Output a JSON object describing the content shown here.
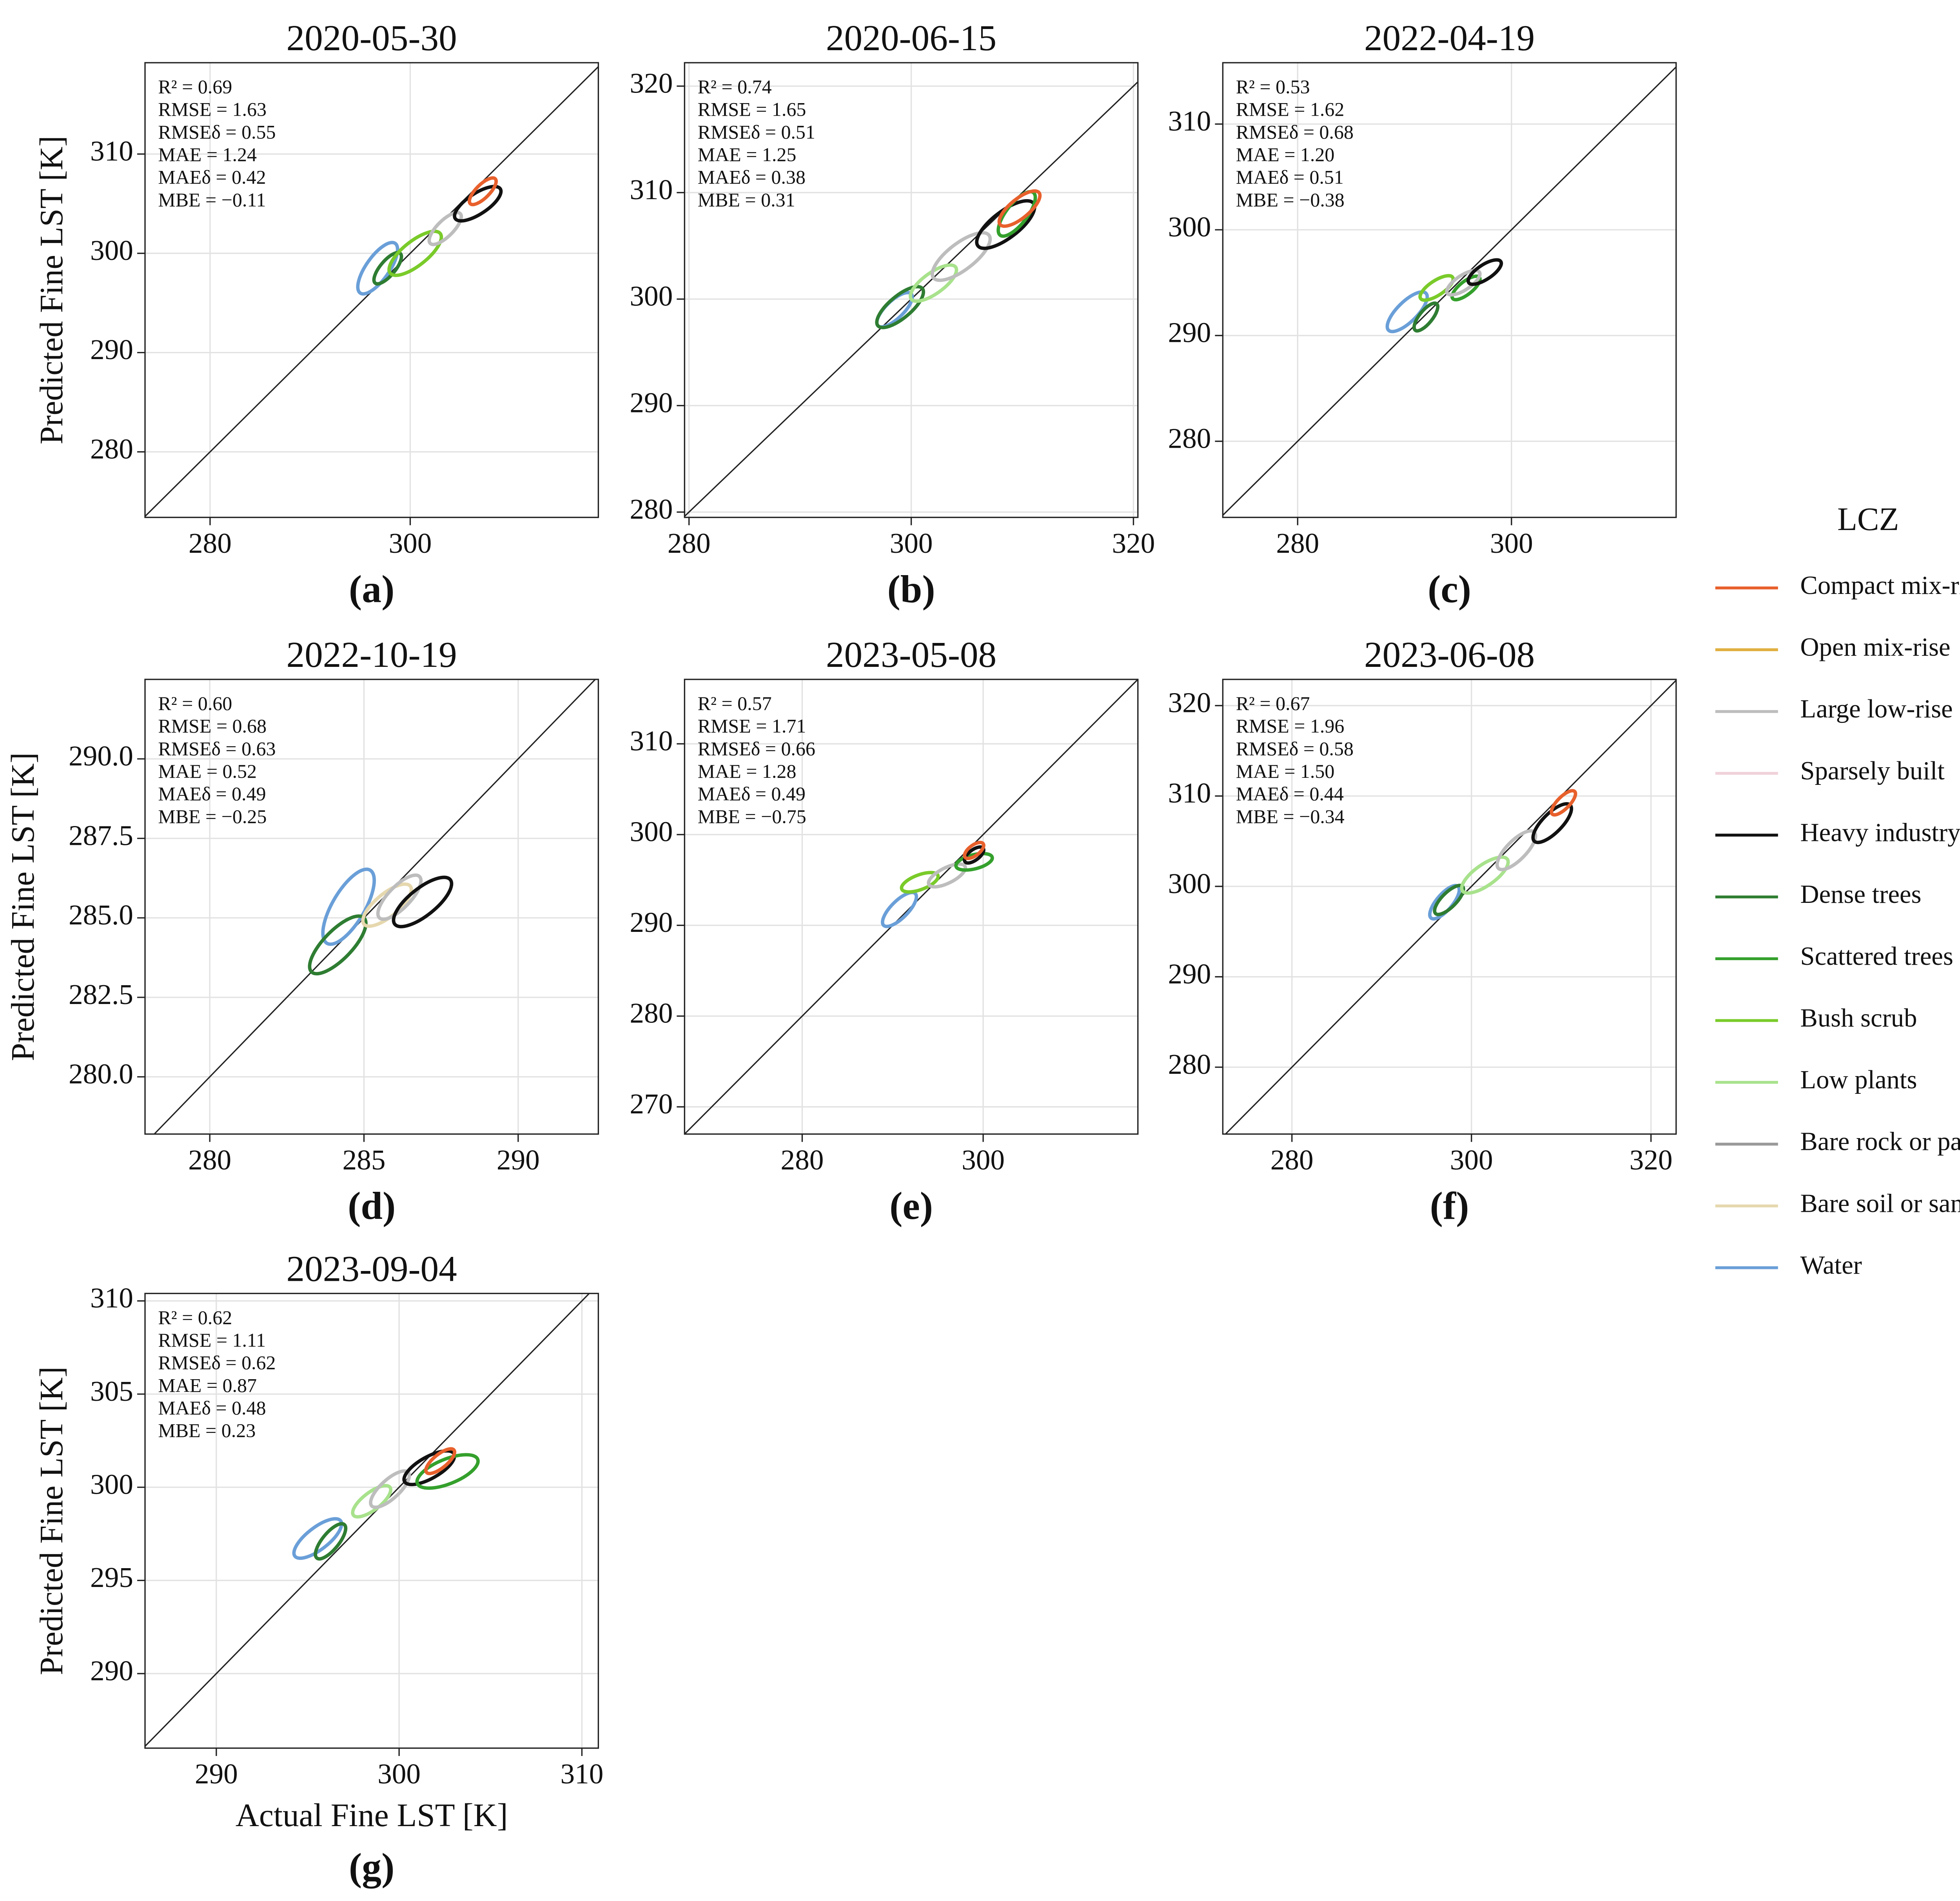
{
  "chart_data": [
    {
      "type": "contour",
      "title": "2020-05-30",
      "panel_label": "(a)",
      "ylabel": "Predicted Fine LST [K]",
      "stats": [
        "R² = 0.69",
        "RMSE = 1.63",
        "RMSEδ = 0.55",
        "MAE = 1.24",
        "MAEδ = 0.42",
        "MBE = −0.11"
      ],
      "xlim": [
        273.5,
        318.8
      ],
      "ylim": [
        273.4,
        319.2
      ],
      "xticks": [
        280,
        300
      ],
      "yticks": [
        280,
        290,
        300,
        310
      ],
      "grid": true,
      "contours": [
        {
          "name": "Water",
          "x": [
            295,
            298.5
          ],
          "y": [
            296,
            301
          ]
        },
        {
          "name": "Dense trees",
          "x": [
            296.5,
            299
          ],
          "y": [
            297,
            300
          ]
        },
        {
          "name": "Bush scrub",
          "x": [
            298,
            303
          ],
          "y": [
            298,
            302
          ]
        },
        {
          "name": "Large low-rise",
          "x": [
            302,
            305
          ],
          "y": [
            301,
            304
          ]
        },
        {
          "name": "Heavy industry",
          "x": [
            304.5,
            309
          ],
          "y": [
            303.5,
            306.5
          ]
        },
        {
          "name": "Compact mix-rise",
          "x": [
            306,
            308.5
          ],
          "y": [
            305,
            307.5
          ]
        }
      ]
    },
    {
      "type": "contour",
      "title": "2020-06-15",
      "panel_label": "(b)",
      "stats": [
        "R² = 0.74",
        "RMSE = 1.65",
        "RMSEδ = 0.51",
        "MAE = 1.25",
        "MAEδ = 0.38",
        "MBE = 0.31"
      ],
      "xlim": [
        279.6,
        320.4
      ],
      "ylim": [
        279.5,
        322.2
      ],
      "xticks": [
        280,
        300,
        320
      ],
      "yticks": [
        280,
        290,
        300,
        310,
        320
      ],
      "grid": true,
      "contours": [
        {
          "name": "Water",
          "x": [
            297,
            300
          ],
          "y": [
            297.5,
            300.5
          ]
        },
        {
          "name": "Dense trees",
          "x": [
            297,
            301
          ],
          "y": [
            297.5,
            301
          ]
        },
        {
          "name": "Low plants",
          "x": [
            300,
            304
          ],
          "y": [
            300,
            303
          ]
        },
        {
          "name": "Large low-rise",
          "x": [
            302,
            307
          ],
          "y": [
            302,
            306
          ]
        },
        {
          "name": "Heavy industry",
          "x": [
            306,
            311
          ],
          "y": [
            305,
            309
          ]
        },
        {
          "name": "Scattered trees",
          "x": [
            308,
            311
          ],
          "y": [
            306,
            310
          ]
        },
        {
          "name": "Compact mix-rise",
          "x": [
            308,
            311.5
          ],
          "y": [
            307,
            310
          ]
        }
      ]
    },
    {
      "type": "contour",
      "title": "2022-04-19",
      "panel_label": "(c)",
      "stats": [
        "R² = 0.53",
        "RMSE = 1.62",
        "RMSEδ = 0.68",
        "MAE = 1.20",
        "MAEδ = 0.51",
        "MBE = −0.38"
      ],
      "xlim": [
        273,
        315.4
      ],
      "ylim": [
        272.8,
        315.8
      ],
      "xticks": [
        280,
        300
      ],
      "yticks": [
        280,
        290,
        300,
        310
      ],
      "grid": true,
      "contours": [
        {
          "name": "Water",
          "x": [
            288.5,
            292
          ],
          "y": [
            290.5,
            294
          ]
        },
        {
          "name": "Dense trees",
          "x": [
            291,
            293
          ],
          "y": [
            290.5,
            293
          ]
        },
        {
          "name": "Bush scrub",
          "x": [
            291.5,
            294.5
          ],
          "y": [
            293.5,
            295.5
          ]
        },
        {
          "name": "Scattered trees",
          "x": [
            294.5,
            297
          ],
          "y": [
            293.5,
            295.5
          ]
        },
        {
          "name": "Large low-rise",
          "x": [
            294,
            297
          ],
          "y": [
            294,
            296
          ]
        },
        {
          "name": "Heavy industry",
          "x": [
            296,
            299
          ],
          "y": [
            295,
            297
          ]
        }
      ]
    },
    {
      "type": "contour",
      "title": "2022-10-19",
      "panel_label": "(d)",
      "ylabel": "Predicted Fine LST [K]",
      "stats": [
        "R² = 0.60",
        "RMSE = 0.68",
        "RMSEδ = 0.63",
        "MAE = 0.52",
        "MAEδ = 0.49",
        "MBE = −0.25"
      ],
      "xlim": [
        277.9,
        292.6
      ],
      "ylim": [
        278.2,
        292.5
      ],
      "xticks": [
        280,
        285,
        290
      ],
      "yticks": [
        {
          "value": 280,
          "label": "280.0"
        },
        {
          "value": 282.5,
          "label": "282.5"
        },
        {
          "value": 285,
          "label": "285.0"
        },
        {
          "value": 287.5,
          "label": "287.5"
        },
        {
          "value": 290,
          "label": "290.0"
        }
      ],
      "grid": true,
      "contours": [
        {
          "name": "Water",
          "x": [
            283.8,
            285.2
          ],
          "y": [
            284.2,
            286.5
          ]
        },
        {
          "name": "Dense trees",
          "x": [
            283.3,
            285
          ],
          "y": [
            283.3,
            285
          ]
        },
        {
          "name": "Bare soil or sand",
          "x": [
            285,
            286.5
          ],
          "y": [
            284.8,
            286
          ]
        },
        {
          "name": "Large low-rise",
          "x": [
            285.5,
            286.8
          ],
          "y": [
            285,
            286.3
          ]
        },
        {
          "name": "Heavy industry",
          "x": [
            286,
            287.8
          ],
          "y": [
            284.8,
            286.2
          ]
        }
      ]
    },
    {
      "type": "contour",
      "title": "2023-05-08",
      "panel_label": "(e)",
      "stats": [
        "R² = 0.57",
        "RMSE = 1.71",
        "RMSEδ = 0.66",
        "MAE = 1.28",
        "MAEδ = 0.49",
        "MBE = −0.75"
      ],
      "xlim": [
        267,
        317.1
      ],
      "ylim": [
        267,
        317.1
      ],
      "xticks": [
        280,
        300
      ],
      "yticks": [
        270,
        280,
        290,
        300,
        310
      ],
      "grid": true,
      "contours": [
        {
          "name": "Water",
          "x": [
            289,
            292.5
          ],
          "y": [
            290,
            293.5
          ]
        },
        {
          "name": "Bush scrub",
          "x": [
            291,
            295
          ],
          "y": [
            294,
            295.5
          ]
        },
        {
          "name": "Large low-rise",
          "x": [
            294,
            298
          ],
          "y": [
            294.5,
            296.5
          ]
        },
        {
          "name": "Scattered trees",
          "x": [
            297,
            301
          ],
          "y": [
            296.5,
            297.5
          ]
        },
        {
          "name": "Heavy industry",
          "x": [
            298,
            300
          ],
          "y": [
            297,
            298.5
          ]
        },
        {
          "name": "Compact mix-rise",
          "x": [
            298,
            300
          ],
          "y": [
            297.5,
            299
          ]
        }
      ]
    },
    {
      "type": "contour",
      "title": "2023-06-08",
      "panel_label": "(f)",
      "stats": [
        "R² = 0.67",
        "RMSE = 1.96",
        "RMSEδ = 0.58",
        "MAE = 1.50",
        "MAEδ = 0.44",
        "MBE = −0.34"
      ],
      "xlim": [
        272.3,
        322.8
      ],
      "ylim": [
        272.6,
        322.9
      ],
      "xticks": [
        280,
        300,
        320
      ],
      "yticks": [
        280,
        290,
        300,
        310,
        320
      ],
      "grid": true,
      "contours": [
        {
          "name": "Water",
          "x": [
            295.5,
            298.5
          ],
          "y": [
            296.5,
            300
          ]
        },
        {
          "name": "Dense trees",
          "x": [
            296,
            299
          ],
          "y": [
            297,
            300
          ]
        },
        {
          "name": "Low plants",
          "x": [
            299,
            304
          ],
          "y": [
            299.5,
            303
          ]
        },
        {
          "name": "Large low-rise",
          "x": [
            303,
            307
          ],
          "y": [
            302,
            306
          ]
        },
        {
          "name": "Heavy industry",
          "x": [
            307,
            311
          ],
          "y": [
            305,
            309
          ]
        },
        {
          "name": "Compact mix-rise",
          "x": [
            309,
            311.5
          ],
          "y": [
            308,
            310.5
          ]
        }
      ]
    },
    {
      "type": "contour",
      "title": "2023-09-04",
      "panel_label": "(g)",
      "ylabel": "Predicted Fine LST [K]",
      "xlabel": "Actual Fine LST [K]",
      "stats": [
        "R² = 0.62",
        "RMSE = 1.11",
        "RMSEδ = 0.62",
        "MAE = 0.87",
        "MAEδ = 0.48",
        "MBE = 0.23"
      ],
      "xlim": [
        286.1,
        310.9
      ],
      "ylim": [
        286,
        310.4
      ],
      "xticks": [
        290,
        300,
        310
      ],
      "yticks": [
        290,
        295,
        300,
        305,
        310
      ],
      "grid": true,
      "contours": [
        {
          "name": "Water",
          "x": [
            294.3,
            296.8
          ],
          "y": [
            296.3,
            298.2
          ]
        },
        {
          "name": "Dense trees",
          "x": [
            295.5,
            297
          ],
          "y": [
            296.2,
            298
          ]
        },
        {
          "name": "Low plants",
          "x": [
            297.5,
            299.5
          ],
          "y": [
            298.5,
            300
          ]
        },
        {
          "name": "Large low-rise",
          "x": [
            298.5,
            300.5
          ],
          "y": [
            299,
            300.8
          ]
        },
        {
          "name": "Heavy industry",
          "x": [
            300.3,
            303
          ],
          "y": [
            300.3,
            301.8
          ]
        },
        {
          "name": "Scattered trees",
          "x": [
            301,
            304.3
          ],
          "y": [
            300.2,
            301.5
          ]
        },
        {
          "name": "Compact mix-rise",
          "x": [
            301.5,
            303
          ],
          "y": [
            300.8,
            302
          ]
        }
      ]
    }
  ],
  "legend": {
    "title": "LCZ",
    "items": [
      {
        "name": "Compact mix-rise",
        "color": "#e8602c"
      },
      {
        "name": "Open mix-rise",
        "color": "#e0b040"
      },
      {
        "name": "Large low-rise",
        "color": "#bdbdbd"
      },
      {
        "name": "Sparsely built",
        "color": "#f0d2da"
      },
      {
        "name": "Heavy industry",
        "color": "#111111"
      },
      {
        "name": "Dense trees",
        "color": "#2e7d32"
      },
      {
        "name": "Scattered trees",
        "color": "#34a02c"
      },
      {
        "name": "Bush scrub",
        "color": "#7acb2a"
      },
      {
        "name": "Low plants",
        "color": "#a8e28c"
      },
      {
        "name": "Bare rock or paved",
        "color": "#9a9a9a"
      },
      {
        "name": "Bare soil or sand",
        "color": "#e6d8ae"
      },
      {
        "name": "Water",
        "color": "#6a9fd8"
      }
    ]
  }
}
